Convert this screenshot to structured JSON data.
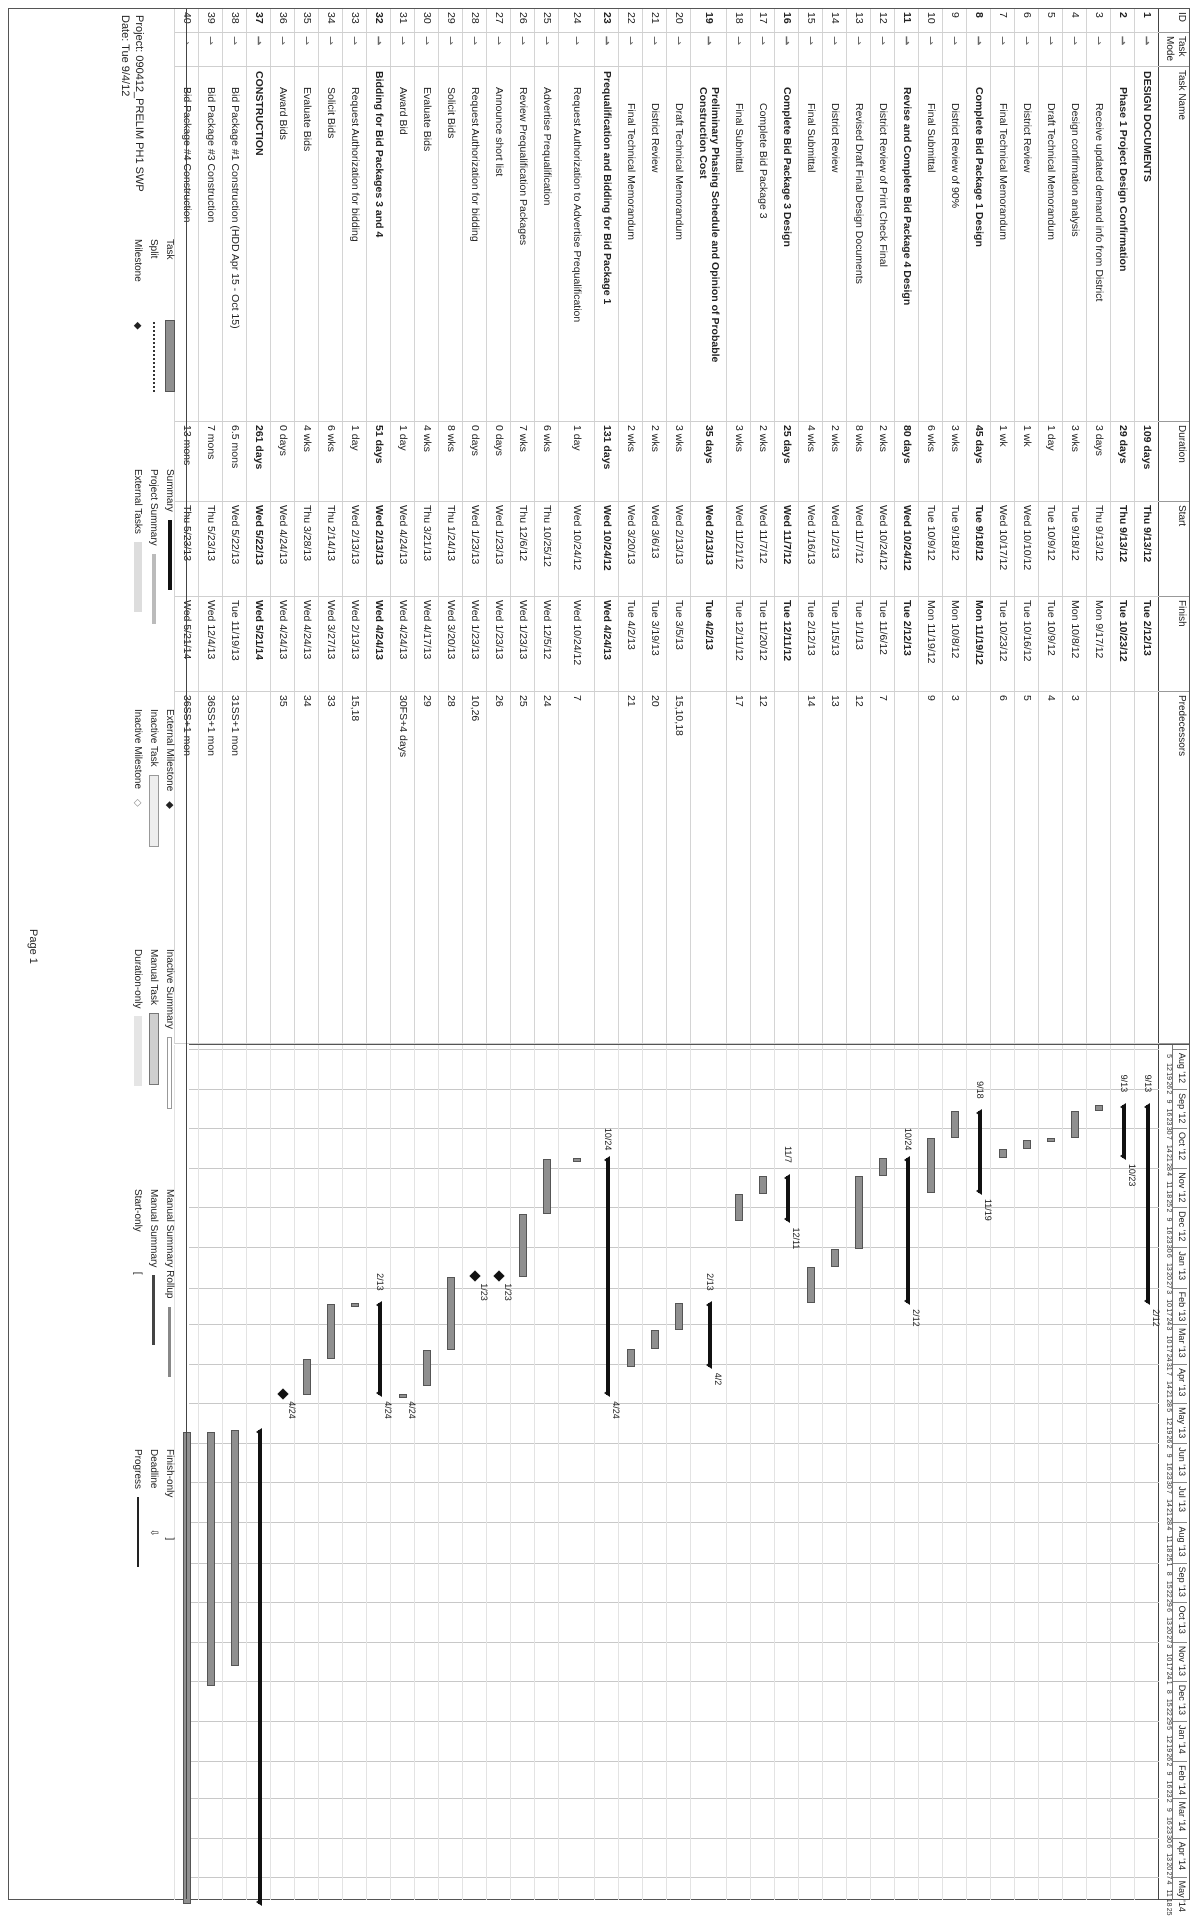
{
  "columns": {
    "id": "ID",
    "mode": "Task Mode",
    "name": "Task Name",
    "duration": "Duration",
    "start": "Start",
    "finish": "Finish",
    "pred": "Predecessors"
  },
  "timeline": {
    "months": [
      "Aug '12",
      "Sep '12",
      "Oct '12",
      "Nov '12",
      "Dec '12",
      "Jan '13",
      "Feb '13",
      "Mar '13",
      "Apr '13",
      "May '13",
      "Jun '13",
      "Jul '13",
      "Aug '13",
      "Sep '13",
      "Oct '13",
      "Nov '13",
      "Dec '13",
      "Jan '14",
      "Feb '14",
      "Mar '14",
      "Apr '14",
      "May '14"
    ],
    "days": [
      "5",
      "12",
      "19",
      "26",
      "2",
      "9",
      "16",
      "23",
      "30",
      "7",
      "14",
      "21",
      "28",
      "4",
      "11",
      "18",
      "25",
      "2",
      "9",
      "16",
      "23",
      "30",
      "6",
      "13",
      "20",
      "27",
      "3",
      "10",
      "17",
      "24",
      "3",
      "10",
      "17",
      "24",
      "31",
      "7",
      "14",
      "21",
      "28",
      "5",
      "12",
      "19",
      "26",
      "2",
      "9",
      "16",
      "23",
      "30",
      "7",
      "14",
      "21",
      "28",
      "4",
      "11",
      "18",
      "25",
      "1",
      "8",
      "15",
      "22",
      "29",
      "6",
      "13",
      "20",
      "27",
      "3",
      "10",
      "17",
      "24",
      "1",
      "8",
      "15",
      "22",
      "29",
      "5",
      "12",
      "19",
      "26",
      "2",
      "9",
      "16",
      "23",
      "2",
      "9",
      "16",
      "23",
      "30",
      "6",
      "13",
      "20",
      "27",
      "4",
      "11",
      "18",
      "25"
    ]
  },
  "tasks": [
    {
      "id": "1",
      "name": "DESIGN DOCUMENTS",
      "duration": "109 days",
      "start": "Thu 9/13/12",
      "finish": "Tue 2/12/13",
      "pred": "",
      "summary": true,
      "indent": 0
    },
    {
      "id": "2",
      "name": "Phase 1 Project Design Confirmation",
      "duration": "29 days",
      "start": "Thu 9/13/12",
      "finish": "Tue 10/23/12",
      "pred": "",
      "summary": true,
      "indent": 1
    },
    {
      "id": "3",
      "name": "Receive updated demand info from District",
      "duration": "3 days",
      "start": "Thu 9/13/12",
      "finish": "Mon 9/17/12",
      "pred": "",
      "summary": false,
      "indent": 2
    },
    {
      "id": "4",
      "name": "Design confirmation analysis",
      "duration": "3 wks",
      "start": "Tue 9/18/12",
      "finish": "Mon 10/8/12",
      "pred": "3",
      "summary": false,
      "indent": 2
    },
    {
      "id": "5",
      "name": "Draft Technical Memorandum",
      "duration": "1 day",
      "start": "Tue 10/9/12",
      "finish": "Tue 10/9/12",
      "pred": "4",
      "summary": false,
      "indent": 2
    },
    {
      "id": "6",
      "name": "District Review",
      "duration": "1 wk",
      "start": "Wed 10/10/12",
      "finish": "Tue 10/16/12",
      "pred": "5",
      "summary": false,
      "indent": 2
    },
    {
      "id": "7",
      "name": "Final Technical Memorandum",
      "duration": "1 wk",
      "start": "Wed 10/17/12",
      "finish": "Tue 10/23/12",
      "pred": "6",
      "summary": false,
      "indent": 2
    },
    {
      "id": "8",
      "name": "Complete Bid Package 1 Design",
      "duration": "45 days",
      "start": "Tue 9/18/12",
      "finish": "Mon 11/19/12",
      "pred": "",
      "summary": true,
      "indent": 1
    },
    {
      "id": "9",
      "name": "District Review of 90%",
      "duration": "3 wks",
      "start": "Tue 9/18/12",
      "finish": "Mon 10/8/12",
      "pred": "3",
      "summary": false,
      "indent": 2
    },
    {
      "id": "10",
      "name": "Final Submittal",
      "duration": "6 wks",
      "start": "Tue 10/9/12",
      "finish": "Mon 11/19/12",
      "pred": "9",
      "summary": false,
      "indent": 2
    },
    {
      "id": "11",
      "name": "Revise and Complete Bid Package 4 Design",
      "duration": "80 days",
      "start": "Wed 10/24/12",
      "finish": "Tue 2/12/13",
      "pred": "",
      "summary": true,
      "indent": 1
    },
    {
      "id": "12",
      "name": "District Review of Print Check Final",
      "duration": "2 wks",
      "start": "Wed 10/24/12",
      "finish": "Tue 11/6/12",
      "pred": "7",
      "summary": false,
      "indent": 2
    },
    {
      "id": "13",
      "name": "Revised Draft Final Design Documents",
      "duration": "8 wks",
      "start": "Wed 11/7/12",
      "finish": "Tue 1/1/13",
      "pred": "12",
      "summary": false,
      "indent": 2
    },
    {
      "id": "14",
      "name": "District Review",
      "duration": "2 wks",
      "start": "Wed 1/2/13",
      "finish": "Tue 1/15/13",
      "pred": "13",
      "summary": false,
      "indent": 2
    },
    {
      "id": "15",
      "name": "Final Submittal",
      "duration": "4 wks",
      "start": "Wed 1/16/13",
      "finish": "Tue 2/12/13",
      "pred": "14",
      "summary": false,
      "indent": 2
    },
    {
      "id": "16",
      "name": "Complete Bid Package 3 Design",
      "duration": "25 days",
      "start": "Wed 11/7/12",
      "finish": "Tue 12/11/12",
      "pred": "",
      "summary": true,
      "indent": 1
    },
    {
      "id": "17",
      "name": "Complete Bid Package 3",
      "duration": "2 wks",
      "start": "Wed 11/7/12",
      "finish": "Tue 11/20/12",
      "pred": "12",
      "summary": false,
      "indent": 2
    },
    {
      "id": "18",
      "name": "Final Submittal",
      "duration": "3 wks",
      "start": "Wed 11/21/12",
      "finish": "Tue 12/11/12",
      "pred": "17",
      "summary": false,
      "indent": 2
    },
    {
      "id": "19",
      "name": "Preliminary Phasing Schedule and Opinion of Probable Construction Cost",
      "duration": "35 days",
      "start": "Wed 2/13/13",
      "finish": "Tue 4/2/13",
      "pred": "",
      "summary": true,
      "indent": 1
    },
    {
      "id": "20",
      "name": "Draft Technical Memorandum",
      "duration": "3 wks",
      "start": "Wed 2/13/13",
      "finish": "Tue 3/5/13",
      "pred": "15,10,18",
      "summary": false,
      "indent": 2
    },
    {
      "id": "21",
      "name": "District Review",
      "duration": "2 wks",
      "start": "Wed 3/6/13",
      "finish": "Tue 3/19/13",
      "pred": "20",
      "summary": false,
      "indent": 2
    },
    {
      "id": "22",
      "name": "Final Technical Memorandum",
      "duration": "2 wks",
      "start": "Wed 3/20/13",
      "finish": "Tue 4/2/13",
      "pred": "21",
      "summary": false,
      "indent": 2
    },
    {
      "id": "23",
      "name": "Prequalification and Bidding for Bid Package 1",
      "duration": "131 days",
      "start": "Wed 10/24/12",
      "finish": "Wed 4/24/13",
      "pred": "",
      "summary": true,
      "indent": 0
    },
    {
      "id": "24",
      "name": "Request Authorization to Advertise Prequalification",
      "duration": "1 day",
      "start": "Wed 10/24/12",
      "finish": "Wed 10/24/12",
      "pred": "7",
      "summary": false,
      "indent": 1
    },
    {
      "id": "25",
      "name": "Advertise Prequalification",
      "duration": "6 wks",
      "start": "Thu 10/25/12",
      "finish": "Wed 12/5/12",
      "pred": "24",
      "summary": false,
      "indent": 1
    },
    {
      "id": "26",
      "name": "Review Prequalification Packages",
      "duration": "7 wks",
      "start": "Thu 12/6/12",
      "finish": "Wed 1/23/13",
      "pred": "25",
      "summary": false,
      "indent": 1
    },
    {
      "id": "27",
      "name": "Announce short list",
      "duration": "0 days",
      "start": "Wed 1/23/13",
      "finish": "Wed 1/23/13",
      "pred": "26",
      "summary": false,
      "indent": 1
    },
    {
      "id": "28",
      "name": "Request Authorization for bidding",
      "duration": "0 days",
      "start": "Wed 1/23/13",
      "finish": "Wed 1/23/13",
      "pred": "10,26",
      "summary": false,
      "indent": 1
    },
    {
      "id": "29",
      "name": "Solicit Bids",
      "duration": "8 wks",
      "start": "Thu 1/24/13",
      "finish": "Wed 3/20/13",
      "pred": "28",
      "summary": false,
      "indent": 1
    },
    {
      "id": "30",
      "name": "Evaluate Bids",
      "duration": "4 wks",
      "start": "Thu 3/21/13",
      "finish": "Wed 4/17/13",
      "pred": "29",
      "summary": false,
      "indent": 1
    },
    {
      "id": "31",
      "name": "Award Bid",
      "duration": "1 day",
      "start": "Wed 4/24/13",
      "finish": "Wed 4/24/13",
      "pred": "30FS+4 days",
      "summary": false,
      "indent": 1
    },
    {
      "id": "32",
      "name": "Bidding for Bid Packages 3 and  4",
      "duration": "51 days",
      "start": "Wed 2/13/13",
      "finish": "Wed 4/24/13",
      "pred": "",
      "summary": true,
      "indent": 0
    },
    {
      "id": "33",
      "name": "Request Authorization for bidding",
      "duration": "1 day",
      "start": "Wed 2/13/13",
      "finish": "Wed 2/13/13",
      "pred": "15,18",
      "summary": false,
      "indent": 1
    },
    {
      "id": "34",
      "name": "Solicit Bids",
      "duration": "6 wks",
      "start": "Thu 2/14/13",
      "finish": "Wed 3/27/13",
      "pred": "33",
      "summary": false,
      "indent": 1
    },
    {
      "id": "35",
      "name": "Evaluate Bids",
      "duration": "4 wks",
      "start": "Thu 3/28/13",
      "finish": "Wed 4/24/13",
      "pred": "34",
      "summary": false,
      "indent": 1
    },
    {
      "id": "36",
      "name": "Award Bids",
      "duration": "0 days",
      "start": "Wed 4/24/13",
      "finish": "Wed 4/24/13",
      "pred": "35",
      "summary": false,
      "indent": 1
    },
    {
      "id": "37",
      "name": "CONSTRUCTION",
      "duration": "261 days",
      "start": "Wed 5/22/13",
      "finish": "Wed 5/21/14",
      "pred": "",
      "summary": true,
      "indent": 0
    },
    {
      "id": "38",
      "name": "Bid Package #1 Construction (HDD Apr 15 - Oct 15)",
      "duration": "6.5 mons",
      "start": "Wed 5/22/13",
      "finish": "Tue 11/19/13",
      "pred": "31SS+1 mon",
      "summary": false,
      "indent": 1
    },
    {
      "id": "39",
      "name": "Bid Package #3 Construction",
      "duration": "7 mons",
      "start": "Thu 5/23/13",
      "finish": "Wed 12/4/13",
      "pred": "36SS+1 mon",
      "summary": false,
      "indent": 1
    },
    {
      "id": "40",
      "name": "Bid Package #4 Construction",
      "duration": "13 mons",
      "start": "Thu 5/23/13",
      "finish": "Wed 5/21/14",
      "pred": "36SS+1 mon",
      "summary": false,
      "indent": 1
    }
  ],
  "bar_labels": [
    {
      "row": "1",
      "start": "9/13",
      "end": "2/12"
    },
    {
      "row": "2",
      "start": "9/13",
      "end": "10/23"
    },
    {
      "row": "8",
      "start": "9/18",
      "end": "11/19"
    },
    {
      "row": "11",
      "start": "10/24",
      "end": "2/12"
    },
    {
      "row": "16",
      "start": "11/7",
      "end": "12/11"
    },
    {
      "row": "19",
      "start": "2/13",
      "end": "4/2"
    },
    {
      "row": "23",
      "start": "10/24",
      "end": "4/24"
    },
    {
      "row": "27",
      "start": "",
      "end": "1/23"
    },
    {
      "row": "28",
      "start": "",
      "end": "1/23"
    },
    {
      "row": "31",
      "start": "",
      "end": "4/24"
    },
    {
      "row": "32",
      "start": "2/13",
      "end": "4/24"
    },
    {
      "row": "36",
      "start": "",
      "end": "4/24"
    }
  ],
  "legend": {
    "project": "Project: 090412_PRELIM PH1 SWP",
    "date": "Date: Tue 9/4/12",
    "col1": [
      "Task",
      "Split",
      "Milestone"
    ],
    "col2": [
      "Summary",
      "Project Summary",
      "External Tasks"
    ],
    "col3": [
      "External Milestone",
      "Inactive Task",
      "Inactive Milestone"
    ],
    "col4": [
      "Inactive Summary",
      "Manual Task",
      "Duration-only"
    ],
    "col5": [
      "Manual Summary Rollup",
      "Manual Summary",
      "Start-only"
    ],
    "col6": [
      "Finish-only",
      "Deadline",
      "Progress"
    ],
    "page": "Page 1"
  }
}
